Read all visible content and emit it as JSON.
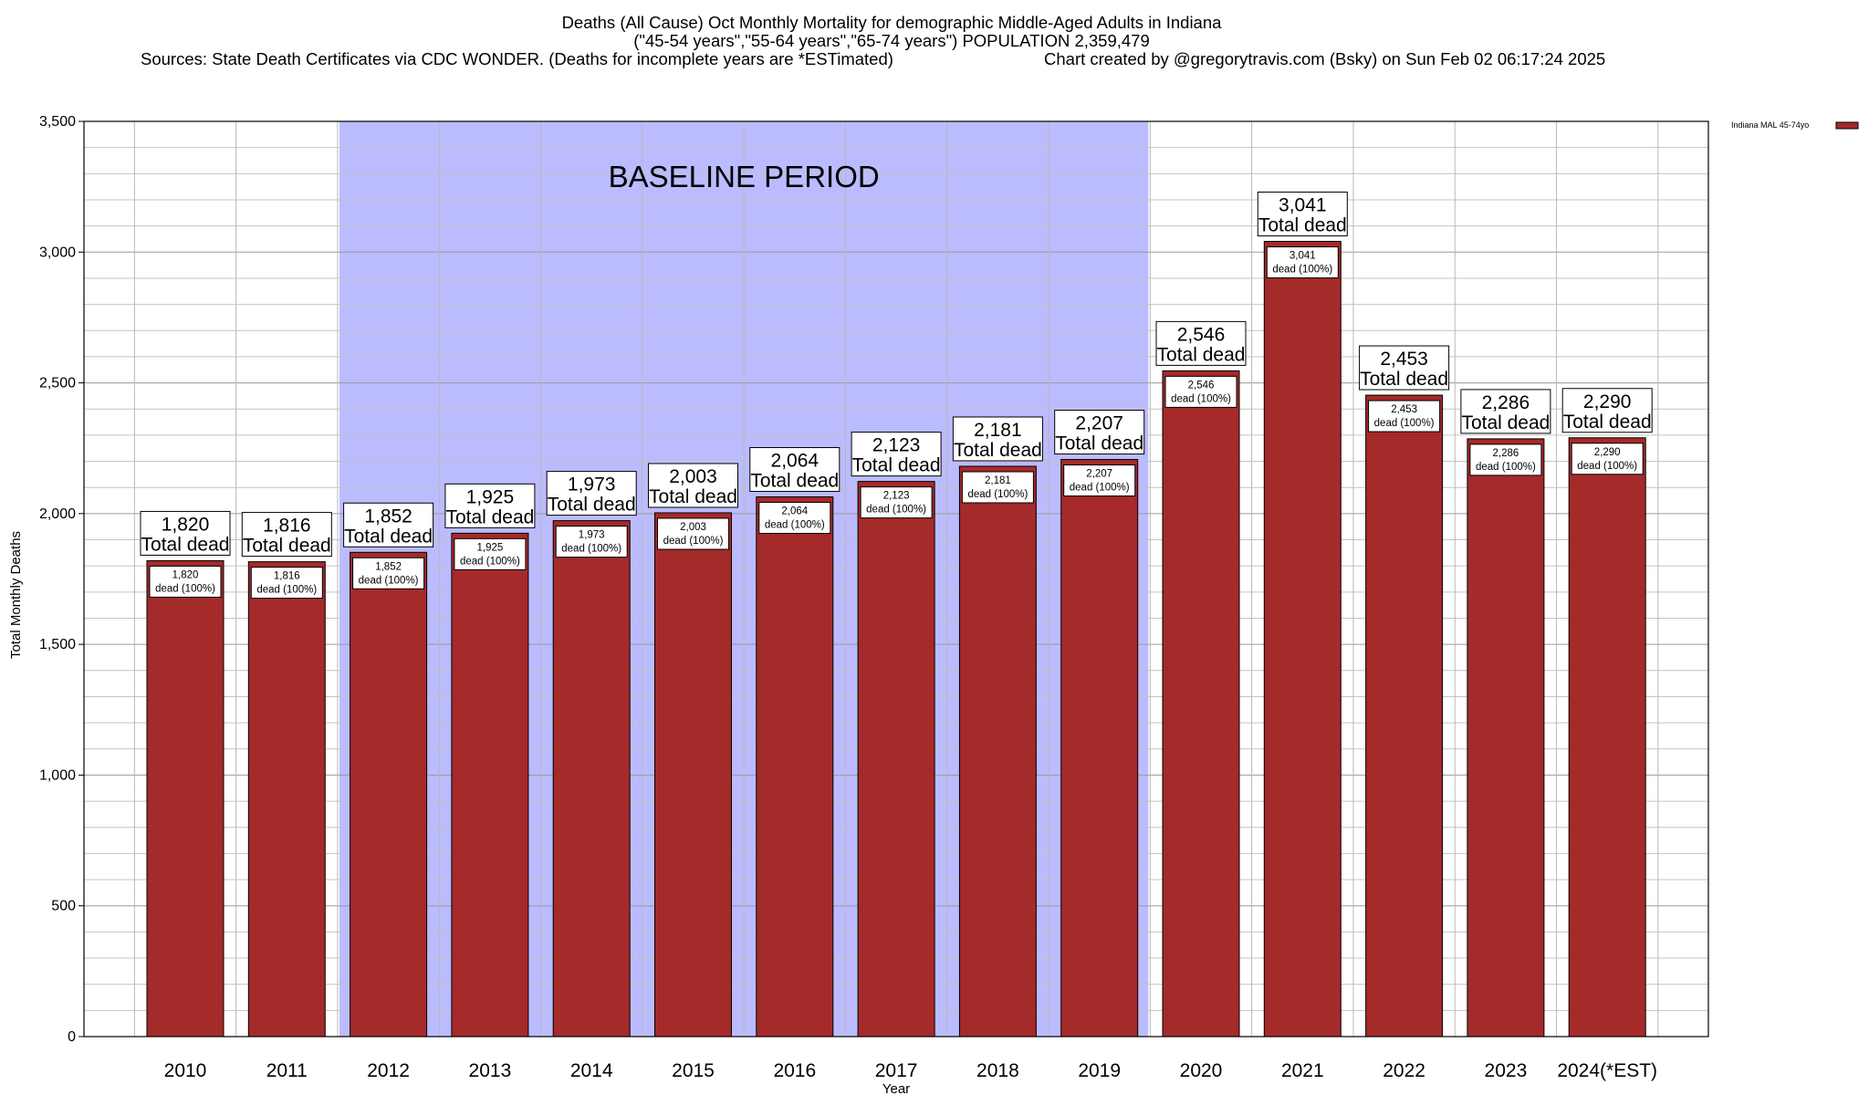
{
  "title": {
    "line1": "Deaths (All Cause) Oct Monthly Mortality for demographic Middle-Aged Adults in Indiana",
    "line2": "(\"45-54 years\",\"55-64 years\",\"65-74 years\") POPULATION 2,359,479",
    "line3_left": "Sources: State Death Certificates via CDC WONDER. (Deaths for incomplete years are *ESTimated)",
    "line3_right": "Chart created by @gregorytravis.com (Bsky) on Sun Feb 02 06:17:24 2025"
  },
  "chart_data": {
    "type": "bar",
    "xlabel": "Year",
    "ylabel": "Total Monthly Deaths",
    "ylim": [
      0,
      3500
    ],
    "yticks": [
      {
        "value": 0,
        "label": "0"
      },
      {
        "value": 500,
        "label": "500"
      },
      {
        "value": 1000,
        "label": "1,000"
      },
      {
        "value": 1500,
        "label": "1,500"
      },
      {
        "value": 2000,
        "label": "2,000"
      },
      {
        "value": 2500,
        "label": "2,500"
      },
      {
        "value": 3000,
        "label": "3,000"
      },
      {
        "value": 3500,
        "label": "3,500"
      }
    ],
    "minor_grid_step": 100,
    "categories": [
      "2010",
      "2011",
      "2012",
      "2013",
      "2014",
      "2015",
      "2016",
      "2017",
      "2018",
      "2019",
      "2020",
      "2021",
      "2022",
      "2023",
      "2024(*EST)"
    ],
    "series": [
      {
        "name": "Indiana MAL 45-74yo",
        "color": "#a52a2a",
        "values": [
          1820,
          1816,
          1852,
          1925,
          1973,
          2003,
          2064,
          2123,
          2181,
          2207,
          2546,
          3041,
          2453,
          2286,
          2290
        ]
      }
    ],
    "value_labels": [
      "1,820",
      "1,816",
      "1,852",
      "1,925",
      "1,973",
      "2,003",
      "2,064",
      "2,123",
      "2,181",
      "2,207",
      "2,546",
      "3,041",
      "2,453",
      "2,286",
      "2,290"
    ],
    "top_label_suffix": "Total dead",
    "inner_label_suffix": "dead (100%)",
    "baseline_period": {
      "label": "BASELINE PERIOD",
      "from": "2012",
      "to": "2019",
      "color": "#bbbbff"
    },
    "legend": {
      "label": "Indiana MAL 45-74yo",
      "placement": "top-right"
    },
    "grid": true
  }
}
